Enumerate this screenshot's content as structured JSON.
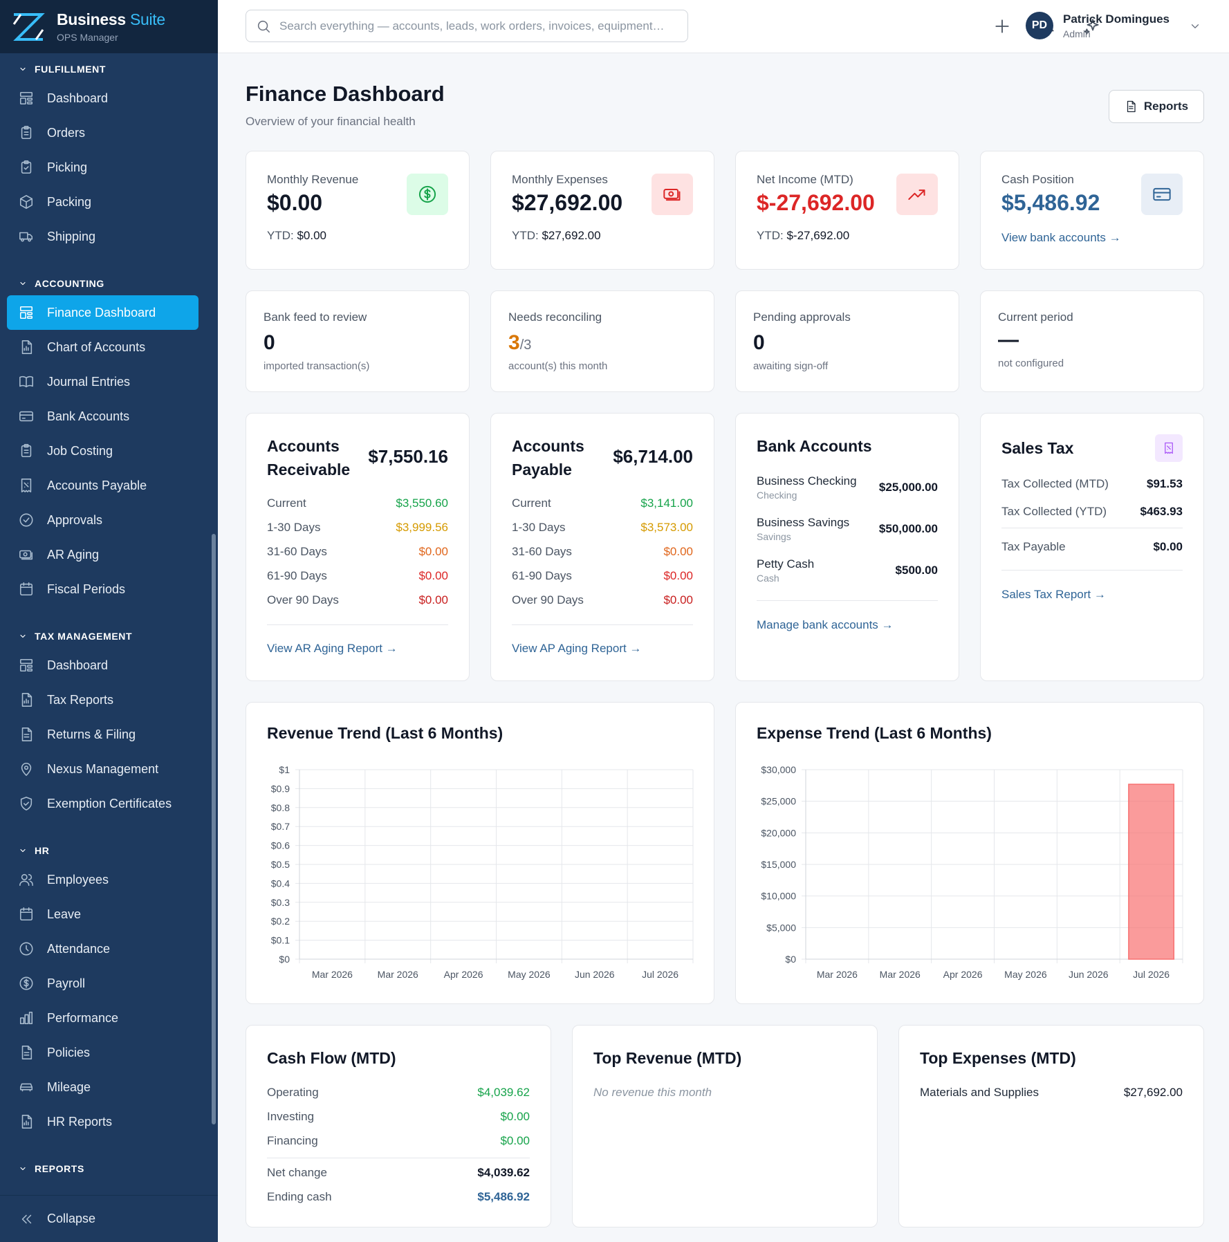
{
  "brand": {
    "name": "Business",
    "suite": "Suite",
    "subtitle": "OPS Manager"
  },
  "search": {
    "placeholder": "Search everything — accounts, leads, work orders, invoices, equipment…"
  },
  "user": {
    "initials": "PD",
    "name": "Patrick Domingues",
    "role": "Admin"
  },
  "sidebar": {
    "sections": [
      {
        "title": "FULFILLMENT",
        "items": [
          {
            "label": "Dashboard",
            "icon": "dashboard-icon"
          },
          {
            "label": "Orders",
            "icon": "clipboard-icon"
          },
          {
            "label": "Picking",
            "icon": "clipboard-check-icon"
          },
          {
            "label": "Packing",
            "icon": "box-icon"
          },
          {
            "label": "Shipping",
            "icon": "truck-icon"
          }
        ]
      },
      {
        "title": "ACCOUNTING",
        "items": [
          {
            "label": "Finance Dashboard",
            "icon": "dashboard-icon",
            "active": true
          },
          {
            "label": "Chart of Accounts",
            "icon": "chart-doc-icon"
          },
          {
            "label": "Journal Entries",
            "icon": "book-icon"
          },
          {
            "label": "Bank Accounts",
            "icon": "card-icon"
          },
          {
            "label": "Job Costing",
            "icon": "clipboard-icon"
          },
          {
            "label": "Accounts Payable",
            "icon": "receipt-icon"
          },
          {
            "label": "Approvals",
            "icon": "check-circle-icon"
          },
          {
            "label": "AR Aging",
            "icon": "cash-icon"
          },
          {
            "label": "Fiscal Periods",
            "icon": "calendar-icon"
          }
        ]
      },
      {
        "title": "TAX MANAGEMENT",
        "items": [
          {
            "label": "Dashboard",
            "icon": "dashboard-icon"
          },
          {
            "label": "Tax Reports",
            "icon": "chart-doc-icon"
          },
          {
            "label": "Returns & Filing",
            "icon": "document-icon"
          },
          {
            "label": "Nexus Management",
            "icon": "map-pin-icon"
          },
          {
            "label": "Exemption Certificates",
            "icon": "shield-check-icon"
          }
        ]
      },
      {
        "title": "HR",
        "items": [
          {
            "label": "Employees",
            "icon": "users-icon"
          },
          {
            "label": "Leave",
            "icon": "calendar-icon"
          },
          {
            "label": "Attendance",
            "icon": "clock-icon"
          },
          {
            "label": "Payroll",
            "icon": "dollar-circle-icon"
          },
          {
            "label": "Performance",
            "icon": "bar-chart-icon"
          },
          {
            "label": "Policies",
            "icon": "document-icon"
          },
          {
            "label": "Mileage",
            "icon": "car-icon"
          },
          {
            "label": "HR Reports",
            "icon": "chart-doc-icon"
          }
        ]
      },
      {
        "title": "REPORTS",
        "items": []
      }
    ],
    "collapse_label": "Collapse"
  },
  "page": {
    "title": "Finance Dashboard",
    "subtitle": "Overview of your financial health",
    "reports_button": "Reports"
  },
  "kpis": [
    {
      "label": "Monthly Revenue",
      "value": "$0.00",
      "sub_label": "YTD:",
      "sub_value": "$0.00",
      "icon": "dollar-circle-icon",
      "color": "#16a34a",
      "bg": "#dcfce7"
    },
    {
      "label": "Monthly Expenses",
      "value": "$27,692.00",
      "sub_label": "YTD:",
      "sub_value": "$27,692.00",
      "icon": "cash-icon",
      "color": "#dc2626",
      "bg": "#fee2e2"
    },
    {
      "label": "Net Income (MTD)",
      "value": "$-27,692.00",
      "sub_label": "YTD:",
      "sub_value": "$-27,692.00",
      "icon": "trend-up-icon",
      "color": "#dc2626",
      "bg": "#fee2e2"
    },
    {
      "label": "Cash Position",
      "value": "$5,486.92",
      "link": "View bank accounts →",
      "icon": "card-icon",
      "color": "#2f6496",
      "bg": "#e8eef6"
    }
  ],
  "stats": [
    {
      "label": "Bank feed to review",
      "value": "0",
      "sub": "imported transaction(s)"
    },
    {
      "label": "Needs reconciling",
      "value": "3",
      "total": "/3",
      "sub": "account(s) this month"
    },
    {
      "label": "Pending approvals",
      "value": "0",
      "sub": "awaiting sign-off"
    },
    {
      "label": "Current period",
      "value": "—",
      "sub": "not configured"
    }
  ],
  "ar": {
    "title_1": "Accounts",
    "title_2": "Receivable",
    "total": "$7,550.16",
    "rows": [
      {
        "label": "Current",
        "value": "$3,550.60"
      },
      {
        "label": "1-30 Days",
        "value": "$3,999.56"
      },
      {
        "label": "31-60 Days",
        "value": "$0.00"
      },
      {
        "label": "61-90 Days",
        "value": "$0.00"
      },
      {
        "label": "Over 90 Days",
        "value": "$0.00"
      }
    ],
    "link": "View AR Aging Report →"
  },
  "ap": {
    "title_1": "Accounts",
    "title_2": "Payable",
    "total": "$6,714.00",
    "rows": [
      {
        "label": "Current",
        "value": "$3,141.00"
      },
      {
        "label": "1-30 Days",
        "value": "$3,573.00"
      },
      {
        "label": "31-60 Days",
        "value": "$0.00"
      },
      {
        "label": "61-90 Days",
        "value": "$0.00"
      },
      {
        "label": "Over 90 Days",
        "value": "$0.00"
      }
    ],
    "link": "View AP Aging Report →"
  },
  "aging_colors": [
    "#16a34a",
    "#d59a00",
    "#e0661c",
    "#dc2626",
    "#c81e1e"
  ],
  "banks": {
    "title": "Bank Accounts",
    "accounts": [
      {
        "name": "Business Checking",
        "type": "Checking",
        "balance": "$25,000.00"
      },
      {
        "name": "Business Savings",
        "type": "Savings",
        "balance": "$50,000.00"
      },
      {
        "name": "Petty Cash",
        "type": "Cash",
        "balance": "$500.00"
      }
    ],
    "link": "Manage bank accounts →"
  },
  "sales_tax": {
    "title": "Sales Tax",
    "collected_mtd_label": "Tax Collected (MTD)",
    "collected_mtd": "$91.53",
    "collected_ytd_label": "Tax Collected (YTD)",
    "collected_ytd": "$463.93",
    "payable_label": "Tax Payable",
    "payable": "$0.00",
    "link": "Sales Tax Report →",
    "icon": "receipt-icon"
  },
  "chart_data": [
    {
      "type": "bar",
      "title": "Revenue Trend (Last 6 Months)",
      "categories": [
        "Mar 2026",
        "Mar 2026",
        "Apr 2026",
        "May 2026",
        "Jun 2026",
        "Jul 2026"
      ],
      "values": [
        0,
        0,
        0,
        0,
        0,
        0
      ],
      "ylim": [
        0,
        1
      ],
      "yticks": [
        "$0",
        "$0.1",
        "$0.2",
        "$0.3",
        "$0.4",
        "$0.5",
        "$0.6",
        "$0.7",
        "$0.8",
        "$0.9",
        "$1"
      ],
      "grid": true,
      "color": "#22c55e"
    },
    {
      "type": "bar",
      "title": "Expense Trend (Last 6 Months)",
      "categories": [
        "Mar 2026",
        "Mar 2026",
        "Apr 2026",
        "May 2026",
        "Jun 2026",
        "Jul 2026"
      ],
      "values": [
        0,
        0,
        0,
        0,
        0,
        27692
      ],
      "ylim": [
        0,
        30000
      ],
      "yticks": [
        "$0",
        "$5,000",
        "$10,000",
        "$15,000",
        "$20,000",
        "$25,000",
        "$30,000"
      ],
      "grid": true,
      "color": "#f87171"
    }
  ],
  "cash_flow": {
    "title": "Cash Flow (MTD)",
    "rows": [
      {
        "label": "Operating",
        "value": "$4,039.62"
      },
      {
        "label": "Investing",
        "value": "$0.00"
      },
      {
        "label": "Financing",
        "value": "$0.00"
      }
    ],
    "net_label": "Net change",
    "net": "$4,039.62",
    "ending_label": "Ending cash",
    "ending": "$5,486.92"
  },
  "top_revenue": {
    "title": "Top Revenue (MTD)",
    "empty": "No revenue this month"
  },
  "top_expenses": {
    "title": "Top Expenses (MTD)",
    "rows": [
      {
        "label": "Materials and Supplies",
        "value": "$27,692.00"
      }
    ]
  }
}
